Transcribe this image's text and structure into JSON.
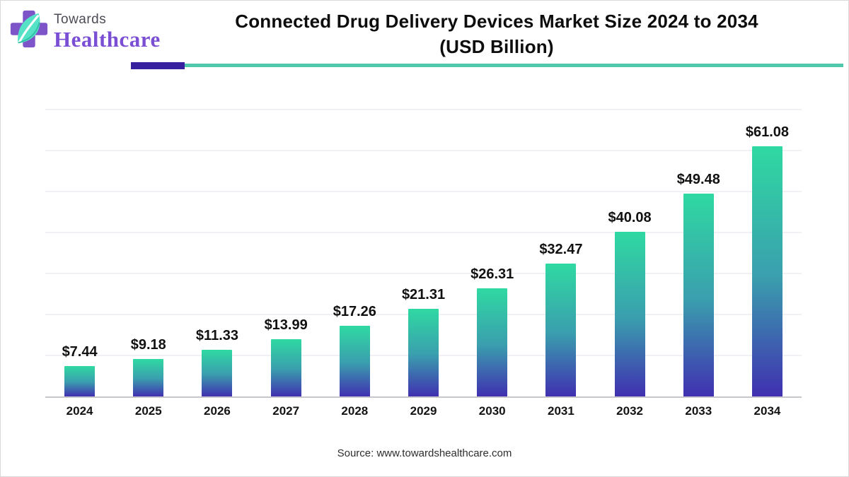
{
  "header": {
    "logo": {
      "towards": "Towards",
      "healthcare": "Healthcare"
    },
    "title_line1": "Connected Drug Delivery Devices Market Size 2024 to 2034",
    "title_line2": "(USD Billion)"
  },
  "footer": {
    "source": "Source: www.towardshealthcare.com"
  },
  "colors": {
    "bar_top": "#2fd9a2",
    "bar_mid": "#3a9fae",
    "bar_bottom": "#4030b0",
    "underline_purple": "#38219f",
    "underline_teal": "#4fc8ab",
    "logo_purple": "#7d55c8",
    "logo_text_purple": "#7a4fd4",
    "logo_text_gray": "#4b4b55",
    "leaf_mint": "#55e2c6",
    "leaf_vein": "#2bbfa0",
    "axis_line": "#c8c8cc",
    "gridline": "#f1f1f5"
  },
  "chart_data": {
    "type": "bar",
    "title": "Connected Drug Delivery Devices Market Size 2024 to 2034 (USD Billion)",
    "unit": "USD Billion",
    "categories": [
      "2024",
      "2025",
      "2026",
      "2027",
      "2028",
      "2029",
      "2030",
      "2031",
      "2032",
      "2033",
      "2034"
    ],
    "values": [
      7.44,
      9.18,
      11.33,
      13.99,
      17.26,
      21.31,
      26.31,
      32.47,
      40.08,
      49.48,
      61.08
    ],
    "value_labels": [
      "$7.44",
      "$9.18",
      "$11.33",
      "$13.99",
      "$17.26",
      "$21.31",
      "$26.31",
      "$32.47",
      "$40.08",
      "$49.48",
      "$61.08"
    ],
    "xlabel": "",
    "ylabel": "",
    "ylim": [
      0,
      71
    ],
    "gridline_step": 10,
    "grid": true,
    "legend": "none",
    "bar_gradient": {
      "top": "#2fd9a2",
      "mid": "#3a9fae",
      "bottom": "#4030b0"
    }
  }
}
